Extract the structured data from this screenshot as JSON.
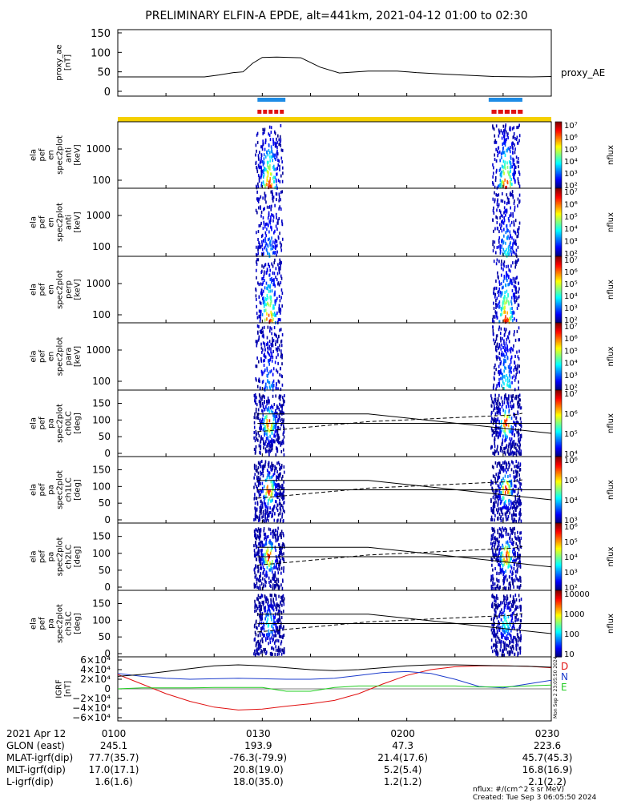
{
  "title": "PRELIMINARY ELFIN-A EPDE, alt=441km, 2021-04-12 01:00 to 02:30",
  "colors": {
    "science_zone_bar": "#f5d000",
    "blue_marker": "#1e8ce6",
    "red_marker": "#e01010",
    "grf_D": "#e01010",
    "grf_N": "#1c3ccc",
    "grf_E": "#22cc22"
  },
  "chart_data": [
    {
      "panel": "proxy_ae",
      "type": "line",
      "ylabel": "proxy_ae [nT]",
      "yticks": [
        "150",
        "100",
        "50",
        "0"
      ],
      "ylim": [
        0,
        150
      ],
      "series_label": "proxy_AE",
      "x_minutes": [
        0,
        18,
        21,
        24,
        26,
        28,
        30,
        33,
        38,
        42,
        46,
        52,
        58,
        62,
        68,
        78,
        86,
        90
      ],
      "values": [
        37,
        37,
        42,
        48,
        50,
        72,
        87,
        88,
        86,
        62,
        47,
        52,
        52,
        48,
        44,
        38,
        37,
        38
      ]
    },
    {
      "panel": "markers",
      "type": "bar",
      "segments": [
        {
          "color": "blue_marker",
          "x_minutes": [
            29.0,
            34.8
          ]
        },
        {
          "color": "red_marker",
          "x_minutes": [
            29.0,
            34.8
          ]
        },
        {
          "color": "blue_marker",
          "x_minutes": [
            77.0,
            84.0
          ]
        },
        {
          "color": "red_marker",
          "x_minutes": [
            77.6,
            84.4
          ]
        },
        {
          "color": "science_zone_bar",
          "x_minutes": [
            0,
            90
          ]
        }
      ]
    },
    {
      "panel": "energy-spectrograms",
      "type": "heatmap",
      "ylabel_unit": "[keV]",
      "yticks": [
        "1000",
        "100"
      ],
      "colorbar_label": "nflux",
      "panels": [
        {
          "label": [
            "ela",
            "pef",
            "en",
            "spec2plot",
            "anti"
          ],
          "cbar_exps": [
            "7",
            "6",
            "5",
            "4",
            "3",
            "2"
          ]
        },
        {
          "label": [
            "ela",
            "pef",
            "en",
            "spec2plot",
            "anti"
          ],
          "cbar_exps": [
            "7",
            "6",
            "5",
            "4",
            "3",
            "2"
          ]
        },
        {
          "label": [
            "ela",
            "pef",
            "en",
            "spec2plot",
            "perp"
          ],
          "cbar_exps": [
            "7",
            "6",
            "5",
            "4",
            "3",
            "2"
          ]
        },
        {
          "label": [
            "ela",
            "pef",
            "en",
            "spec2plot",
            "para"
          ],
          "cbar_exps": [
            "7",
            "6",
            "5",
            "4",
            "3",
            "2"
          ]
        }
      ],
      "intensity_profile": [
        {
          "name": "anti",
          "bursts": [
            [
              31.3,
              1.0
            ],
            [
              80.5,
              1.0
            ]
          ]
        },
        {
          "name": "anti",
          "bursts": [
            [
              31.3,
              0.3
            ],
            [
              80.5,
              0.4
            ]
          ]
        },
        {
          "name": "perp",
          "bursts": [
            [
              31.3,
              1.0
            ],
            [
              80.5,
              1.0
            ]
          ]
        },
        {
          "name": "para",
          "bursts": [
            [
              31.3,
              0.3
            ],
            [
              80.5,
              0.5
            ]
          ]
        }
      ]
    },
    {
      "panel": "pitch-angle-spectrograms",
      "type": "heatmap",
      "ylabel_unit": "[deg]",
      "yticks": [
        "150",
        "100",
        "50",
        "0"
      ],
      "ylim": [
        0,
        180
      ],
      "colorbar_label": "nflux",
      "panels": [
        {
          "label": [
            "ela",
            "pef",
            "pa",
            "spec2plot",
            "ch0LC"
          ],
          "cbar_ticks": [
            "10⁷",
            "10⁶",
            "10⁵",
            "10⁴"
          ]
        },
        {
          "label": [
            "ela",
            "pef",
            "pa",
            "spec2plot",
            "ch1LC"
          ],
          "cbar_ticks": [
            "10⁶",
            "10⁵",
            "10⁴",
            "10³"
          ]
        },
        {
          "label": [
            "ela",
            "pef",
            "pa",
            "spec2plot",
            "ch2LC"
          ],
          "cbar_ticks": [
            "10⁶",
            "10⁵",
            "10⁴",
            "10³",
            "10²"
          ]
        },
        {
          "label": [
            "ela",
            "pef",
            "pa",
            "spec2plot",
            "ch3LC"
          ],
          "cbar_ticks": [
            "10000",
            "1000",
            "100",
            "10"
          ]
        }
      ],
      "overlay_lines": {
        "solid_upper": {
          "x_minutes": [
            29,
            52,
            90
          ],
          "values": [
            118,
            118,
            60
          ]
        },
        "solid_middle": {
          "x_minutes": [
            29,
            90
          ],
          "values": [
            90,
            90
          ]
        },
        "dashed": {
          "x_minutes": [
            29,
            33,
            52,
            82,
            84
          ],
          "values": [
            65,
            70,
            95,
            115,
            120
          ]
        }
      }
    },
    {
      "panel": "IGRF",
      "type": "line",
      "ylabel": "IGRF [nT]",
      "yticks": [
        "6×10⁴",
        "4×10⁴",
        "2×10⁴",
        "0",
        "−2×10⁴",
        "−4×10⁴",
        "−6×10⁴"
      ],
      "ylim": [
        -60000,
        60000
      ],
      "legend": [
        "D",
        "N",
        "E"
      ],
      "x_minutes": [
        0,
        5,
        10,
        15,
        20,
        25,
        30,
        35,
        40,
        45,
        50,
        55,
        60,
        65,
        70,
        75,
        80,
        85,
        90
      ],
      "series": [
        {
          "name": "D",
          "color": "grf_D",
          "values": [
            30000,
            10000,
            -10000,
            -26000,
            -38000,
            -44000,
            -42000,
            -36000,
            -31000,
            -24000,
            -10000,
            10000,
            28000,
            40000,
            46000,
            48000,
            48000,
            47000,
            44000
          ]
        },
        {
          "name": "N",
          "color": "grf_N",
          "values": [
            32000,
            26000,
            22000,
            20000,
            21000,
            22000,
            21000,
            20000,
            20000,
            22000,
            28000,
            34000,
            36000,
            32000,
            20000,
            5000,
            2000,
            10000,
            18000
          ]
        },
        {
          "name": "E",
          "color": "grf_E",
          "values": [
            0,
            2000,
            2000,
            2000,
            3000,
            3000,
            3000,
            -5000,
            -5000,
            3000,
            6000,
            6000,
            6000,
            6000,
            6000,
            4000,
            4000,
            6000,
            8000
          ]
        },
        {
          "name": "total",
          "color": "#000000",
          "values": [
            26000,
            30000,
            36000,
            42000,
            48000,
            50000,
            48000,
            44000,
            40000,
            38000,
            40000,
            44000,
            48000,
            50000,
            50000,
            49000,
            48000,
            47000,
            45000
          ]
        }
      ],
      "side_text": "Mon Sep 2 23:05:50 2024"
    }
  ],
  "x_axis_table": {
    "rows": [
      {
        "label": "2021 Apr 12",
        "values": [
          "0100",
          "0130",
          "0200",
          "0230"
        ]
      },
      {
        "label": "GLON (east)",
        "values": [
          "245.1",
          "193.9",
          "47.3",
          "223.6"
        ]
      },
      {
        "label": "MLAT-igrf(dip)",
        "values": [
          "77.7(35.7)",
          "-76.3(-79.9)",
          "21.4(17.6)",
          "45.7(45.3)"
        ]
      },
      {
        "label": "MLT-igrf(dip)",
        "values": [
          "17.0(17.1)",
          "20.8(19.0)",
          "5.2(5.4)",
          "16.8(16.9)"
        ]
      },
      {
        "label": "L-igrf(dip)",
        "values": [
          "1.6(1.6)",
          "18.0(35.0)",
          "1.2(1.2)",
          "2.1(2.2)"
        ]
      }
    ]
  },
  "footer": {
    "units": "nflux: #/(cm^2 s sr MeV)",
    "created": "Created: Tue Sep  3 06:05:50 2024"
  }
}
